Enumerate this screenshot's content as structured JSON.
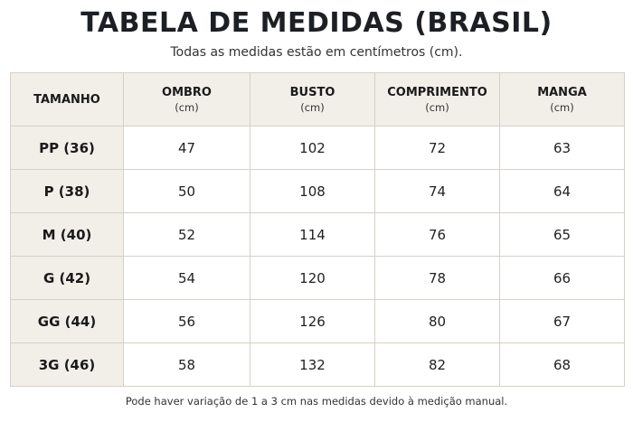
{
  "title": "TABELA DE MEDIDAS (BRASIL)",
  "subtitle": "Todas as medidas estão em centímetros (cm).",
  "table": {
    "headers": [
      {
        "label": "TAMANHO",
        "unit": ""
      },
      {
        "label": "OMBRO",
        "unit": "(cm)"
      },
      {
        "label": "BUSTO",
        "unit": "(cm)"
      },
      {
        "label": "COMPRIMENTO",
        "unit": "(cm)"
      },
      {
        "label": "MANGA",
        "unit": "(cm)"
      }
    ],
    "rows": [
      {
        "size": "PP (36)",
        "ombro": "47",
        "busto": "102",
        "comprimento": "72",
        "manga": "63"
      },
      {
        "size": "P (38)",
        "ombro": "50",
        "busto": "108",
        "comprimento": "74",
        "manga": "64"
      },
      {
        "size": "M (40)",
        "ombro": "52",
        "busto": "114",
        "comprimento": "76",
        "manga": "65"
      },
      {
        "size": "G (42)",
        "ombro": "54",
        "busto": "120",
        "comprimento": "78",
        "manga": "66"
      },
      {
        "size": "GG (44)",
        "ombro": "56",
        "busto": "126",
        "comprimento": "80",
        "manga": "67"
      },
      {
        "size": "3G (46)",
        "ombro": "58",
        "busto": "132",
        "comprimento": "82",
        "manga": "68"
      }
    ]
  },
  "footnote": "Pode haver variação de 1 a 3 cm nas medidas devido à medição manual.",
  "colors": {
    "header_bg": "#f2efe8",
    "border": "#d6d1c7",
    "title": "#1c1f24"
  }
}
